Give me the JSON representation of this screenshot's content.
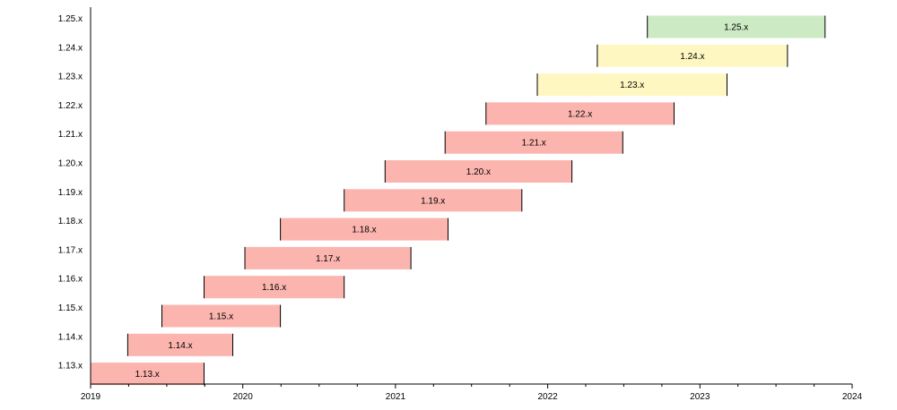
{
  "chart_data": {
    "type": "bar",
    "orientation": "horizontal-timeline",
    "title": "",
    "xlabel": "",
    "ylabel": "",
    "x_axis": {
      "ticks": [
        "2019",
        "2020",
        "2021",
        "2022",
        "2023",
        "2024"
      ],
      "range": [
        "2019-01-01",
        "2024-01-01"
      ],
      "minor_ticks_per_year": 4
    },
    "grid": false,
    "series": [
      {
        "name": "1.13.x",
        "start": "2018-12-31",
        "end": "2019-09-30",
        "status": "eol"
      },
      {
        "name": "1.14.x",
        "start": "2019-03-31",
        "end": "2019-12-08",
        "status": "eol"
      },
      {
        "name": "1.15.x",
        "start": "2019-06-21",
        "end": "2020-03-31",
        "status": "eol"
      },
      {
        "name": "1.16.x",
        "start": "2019-09-30",
        "end": "2020-08-31",
        "status": "eol"
      },
      {
        "name": "1.17.x",
        "start": "2020-01-06",
        "end": "2021-02-07",
        "status": "eol"
      },
      {
        "name": "1.18.x",
        "start": "2020-03-31",
        "end": "2021-05-07",
        "status": "eol"
      },
      {
        "name": "1.19.x",
        "start": "2020-08-31",
        "end": "2021-10-31",
        "status": "eol"
      },
      {
        "name": "1.20.x",
        "start": "2020-12-07",
        "end": "2022-02-28",
        "status": "eol"
      },
      {
        "name": "1.21.x",
        "start": "2021-04-30",
        "end": "2022-06-30",
        "status": "eol"
      },
      {
        "name": "1.22.x",
        "start": "2021-08-06",
        "end": "2022-10-31",
        "status": "eol"
      },
      {
        "name": "1.23.x",
        "start": "2021-12-07",
        "end": "2023-03-07",
        "status": "maintenance"
      },
      {
        "name": "1.24.x",
        "start": "2022-04-30",
        "end": "2023-07-30",
        "status": "maintenance"
      },
      {
        "name": "1.25.x",
        "start": "2022-08-28",
        "end": "2023-10-28",
        "status": "supported"
      }
    ],
    "colors": {
      "eol": "#fbb4ae",
      "maintenance": "#fff7c2",
      "supported": "#ccebc5"
    }
  }
}
